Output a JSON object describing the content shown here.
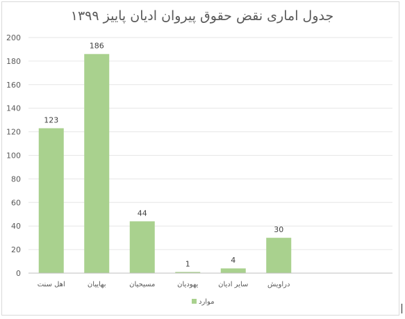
{
  "chart_data": {
    "type": "bar",
    "title": "جدول اماری نقض حقوق پیروان ادیان پاییز ۱۳۹۹",
    "categories": [
      "اهل سنت",
      "بهاییان",
      "مسیحیان",
      "یهودیان",
      "سایر ادیان",
      "دراویش"
    ],
    "series": [
      {
        "name": "موارد",
        "values": [
          123,
          186,
          44,
          1,
          4,
          30
        ],
        "color": "#a9d18e"
      }
    ],
    "ylim": [
      0,
      200
    ],
    "yticks": [
      0,
      20,
      40,
      60,
      80,
      100,
      120,
      140,
      160,
      180,
      200
    ],
    "grid": true,
    "legend_position": "bottom",
    "data_labels": true,
    "xlabel": "",
    "ylabel": ""
  }
}
